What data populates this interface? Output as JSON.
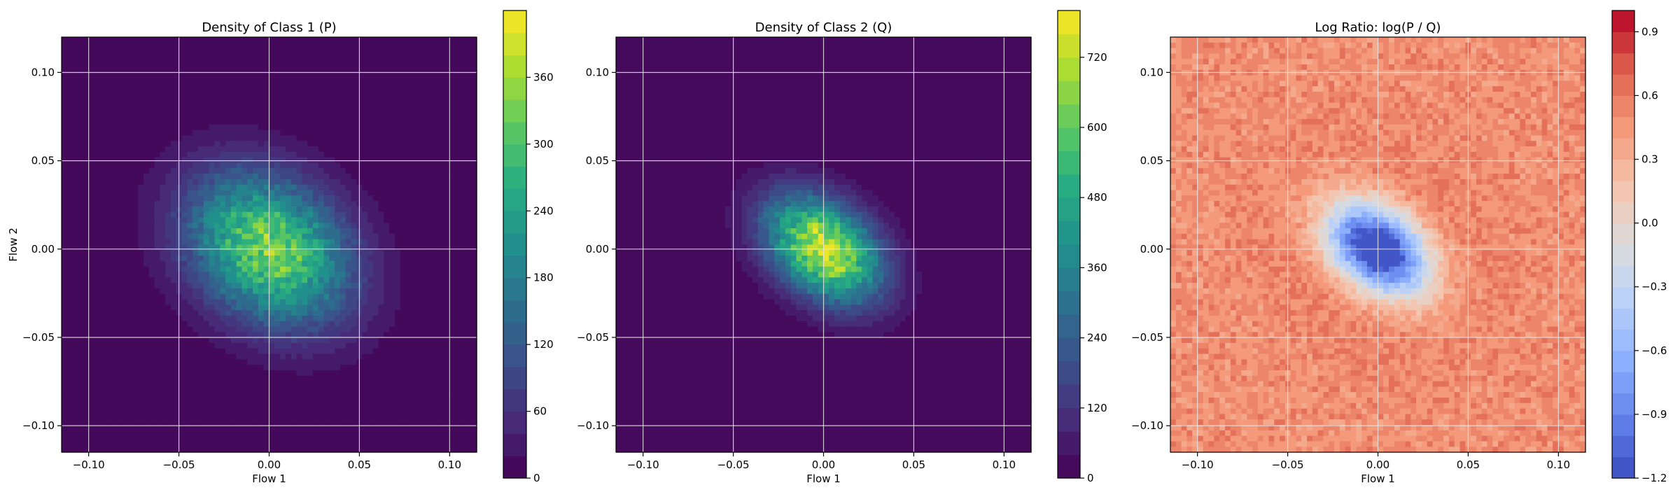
{
  "chart_data": [
    {
      "type": "heatmap",
      "title": "Density of Class 1 (P)",
      "xlabel": "Flow 1",
      "ylabel": "Flow 2",
      "xlim": [
        -0.115,
        0.115
      ],
      "ylim": [
        -0.115,
        0.12
      ],
      "xticks": [
        -0.1,
        -0.05,
        0.0,
        0.05,
        0.1
      ],
      "xtick_labels": [
        "−0.10",
        "−0.05",
        "0.00",
        "0.05",
        "0.10"
      ],
      "yticks": [
        -0.1,
        -0.05,
        0.0,
        0.05,
        0.1
      ],
      "ytick_labels": [
        "−0.10",
        "−0.05",
        "0.00",
        "0.05",
        "0.10"
      ],
      "grid": true,
      "colormap": "viridis",
      "colorbar": {
        "min": 0,
        "max": 420,
        "levels": 21,
        "ticks": [
          0,
          60,
          120,
          180,
          240,
          300,
          360
        ],
        "tick_labels": [
          "0",
          "60",
          "120",
          "180",
          "240",
          "300",
          "360"
        ]
      },
      "density": {
        "center": [
          0.0,
          0.0
        ],
        "peak": 340,
        "sigma_major": 0.034,
        "sigma_minor": 0.026,
        "angle_deg": -40
      }
    },
    {
      "type": "heatmap",
      "title": "Density of Class 2 (Q)",
      "xlabel": "Flow 1",
      "ylabel": "",
      "xlim": [
        -0.115,
        0.115
      ],
      "ylim": [
        -0.115,
        0.12
      ],
      "xticks": [
        -0.1,
        -0.05,
        0.0,
        0.05,
        0.1
      ],
      "xtick_labels": [
        "−0.10",
        "−0.05",
        "0.00",
        "0.05",
        "0.10"
      ],
      "yticks": [
        -0.1,
        -0.05,
        0.0,
        0.05,
        0.1
      ],
      "ytick_labels": [
        "−0.10",
        "−0.05",
        "0.00",
        "0.05",
        "0.10"
      ],
      "grid": true,
      "colormap": "viridis",
      "colorbar": {
        "min": 0,
        "max": 800,
        "levels": 20,
        "ticks": [
          0,
          120,
          240,
          360,
          480,
          600,
          720
        ],
        "tick_labels": [
          "0",
          "120",
          "240",
          "360",
          "480",
          "600",
          "720"
        ]
      },
      "density": {
        "center": [
          0.0,
          0.0
        ],
        "peak": 760,
        "sigma_major": 0.025,
        "sigma_minor": 0.017,
        "angle_deg": -40
      }
    },
    {
      "type": "heatmap",
      "title": "Log Ratio: log(P / Q)",
      "xlabel": "Flow 1",
      "ylabel": "",
      "xlim": [
        -0.115,
        0.115
      ],
      "ylim": [
        -0.115,
        0.12
      ],
      "xticks": [
        -0.1,
        -0.05,
        0.0,
        0.05,
        0.1
      ],
      "xtick_labels": [
        "−0.10",
        "−0.05",
        "0.00",
        "0.05",
        "0.10"
      ],
      "yticks": [
        -0.1,
        -0.05,
        0.0,
        0.05,
        0.1
      ],
      "ytick_labels": [
        "−0.10",
        "−0.05",
        "0.00",
        "0.05",
        "0.10"
      ],
      "grid": true,
      "colormap": "coolwarm",
      "colorbar": {
        "min": -1.2,
        "max": 1.0,
        "levels": 22,
        "ticks": [
          -1.2,
          -0.9,
          -0.6,
          -0.3,
          0.0,
          0.3,
          0.6,
          0.9
        ],
        "tick_labels": [
          "−1.2",
          "−0.9",
          "−0.6",
          "−0.3",
          "0.0",
          "0.3",
          "0.6",
          "0.9"
        ]
      },
      "ratio": {
        "background": 0.5,
        "ring_value": 0.8,
        "center_value": -1.1
      }
    }
  ]
}
